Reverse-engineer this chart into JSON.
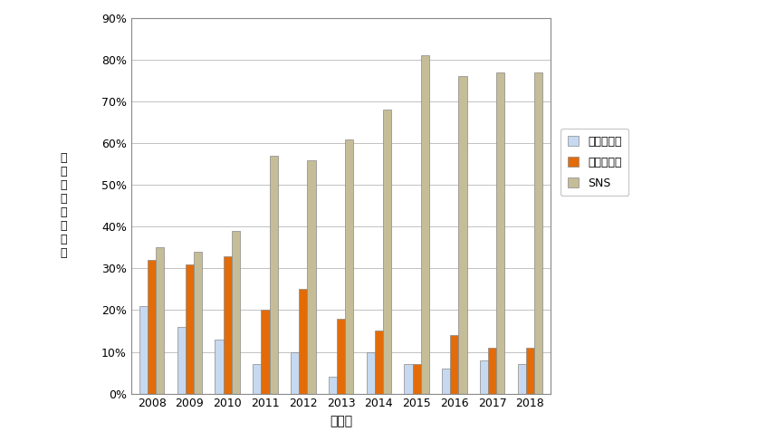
{
  "years": [
    2008,
    2009,
    2010,
    2011,
    2012,
    2013,
    2014,
    2015,
    2016,
    2017,
    2018
  ],
  "web_search": [
    21,
    16,
    13,
    7,
    10,
    4,
    10,
    7,
    6,
    8,
    7
  ],
  "ecommerce": [
    32,
    31,
    33,
    20,
    25,
    18,
    15,
    7,
    14,
    11,
    11
  ],
  "sns": [
    35,
    34,
    39,
    57,
    56,
    61,
    68,
    81,
    76,
    77,
    77
  ],
  "bar_color_web": "#c6d9f0",
  "bar_color_ecommerce": "#e36c09",
  "bar_color_sns": "#c4bd97",
  "ylabel": "論\n文\n発\n表\n件\n数\n比\n率",
  "xlabel": "発行年",
  "legend_web": "ウェブ検索",
  "legend_ec": "電子商取引",
  "legend_sns": "SNS",
  "ylim": [
    0,
    90
  ],
  "yticks": [
    0,
    10,
    20,
    30,
    40,
    50,
    60,
    70,
    80,
    90
  ],
  "ytick_labels": [
    "0%",
    "10%",
    "20%",
    "30%",
    "40%",
    "50%",
    "60%",
    "70%",
    "80%",
    "90%"
  ],
  "bar_width": 0.22,
  "background_color": "#ffffff",
  "grid_color": "#aaaaaa",
  "spine_color": "#888888"
}
